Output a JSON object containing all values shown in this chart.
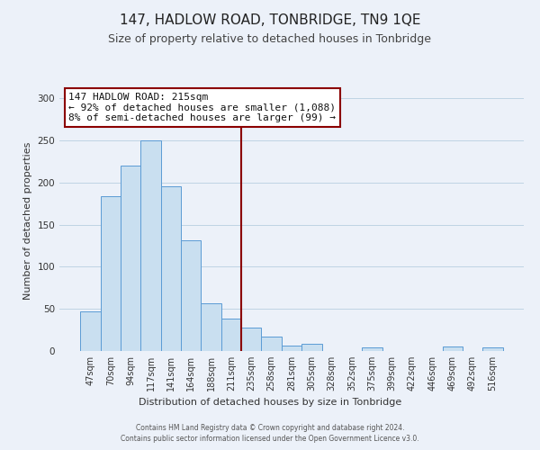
{
  "title": "147, HADLOW ROAD, TONBRIDGE, TN9 1QE",
  "subtitle": "Size of property relative to detached houses in Tonbridge",
  "xlabel": "Distribution of detached houses by size in Tonbridge",
  "ylabel": "Number of detached properties",
  "footer_line1": "Contains HM Land Registry data © Crown copyright and database right 2024.",
  "footer_line2": "Contains public sector information licensed under the Open Government Licence v3.0.",
  "bar_labels": [
    "47sqm",
    "70sqm",
    "94sqm",
    "117sqm",
    "141sqm",
    "164sqm",
    "188sqm",
    "211sqm",
    "235sqm",
    "258sqm",
    "281sqm",
    "305sqm",
    "328sqm",
    "352sqm",
    "375sqm",
    "399sqm",
    "422sqm",
    "446sqm",
    "469sqm",
    "492sqm",
    "516sqm"
  ],
  "bar_values": [
    47,
    184,
    220,
    250,
    196,
    131,
    57,
    39,
    28,
    17,
    6,
    9,
    0,
    0,
    4,
    0,
    0,
    0,
    5,
    0,
    4
  ],
  "bar_color": "#c9dff0",
  "bar_edge_color": "#5b9bd5",
  "vline_pos": 7.5,
  "vline_color": "#8b0000",
  "annotation_title": "147 HADLOW ROAD: 215sqm",
  "annotation_line1": "← 92% of detached houses are smaller (1,088)",
  "annotation_line2": "8% of semi-detached houses are larger (99) →",
  "annotation_box_edge": "#8b0000",
  "annotation_box_face": "#ffffff",
  "ylim": [
    0,
    310
  ],
  "bg_color": "#ecf1f9",
  "title_fontsize": 11,
  "subtitle_fontsize": 9,
  "ylabel_fontsize": 8,
  "xlabel_fontsize": 8,
  "tick_fontsize": 7,
  "annotation_fontsize": 8,
  "footer_fontsize": 5.5
}
